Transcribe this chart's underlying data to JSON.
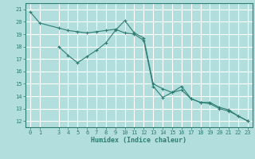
{
  "title": "",
  "xlabel": "Humidex (Indice chaleur)",
  "ylabel": "",
  "bg_color": "#b2dede",
  "grid_color": "#ffffff",
  "line_color": "#2e7d72",
  "marker_color": "#2e7d72",
  "xlim": [
    -0.5,
    23.5
  ],
  "ylim": [
    11.5,
    21.5
  ],
  "xticks": [
    0,
    1,
    3,
    4,
    5,
    6,
    7,
    8,
    9,
    10,
    11,
    12,
    13,
    14,
    15,
    16,
    17,
    18,
    19,
    20,
    21,
    22,
    23
  ],
  "yticks": [
    12,
    13,
    14,
    15,
    16,
    17,
    18,
    19,
    20,
    21
  ],
  "series1_x": [
    0,
    1,
    3,
    4,
    5,
    6,
    7,
    8,
    9,
    10,
    11,
    12,
    13,
    14,
    15,
    16,
    17,
    18,
    19,
    20,
    21,
    22,
    23
  ],
  "series1_y": [
    20.8,
    19.9,
    19.5,
    19.3,
    19.2,
    19.1,
    19.2,
    19.3,
    19.4,
    19.1,
    19.0,
    18.5,
    14.8,
    13.9,
    14.3,
    14.5,
    13.8,
    13.5,
    13.5,
    13.1,
    12.9,
    12.4,
    12.0
  ],
  "series2_x": [
    3,
    4,
    5,
    6,
    7,
    8,
    9,
    10,
    11,
    12,
    13,
    14,
    15,
    16,
    17,
    18,
    19,
    20,
    21,
    22,
    23
  ],
  "series2_y": [
    18.0,
    17.3,
    16.7,
    17.2,
    17.7,
    18.3,
    19.3,
    20.1,
    19.1,
    18.7,
    15.0,
    14.6,
    14.3,
    14.8,
    13.8,
    13.5,
    13.4,
    13.0,
    12.8,
    12.4,
    12.0
  ]
}
